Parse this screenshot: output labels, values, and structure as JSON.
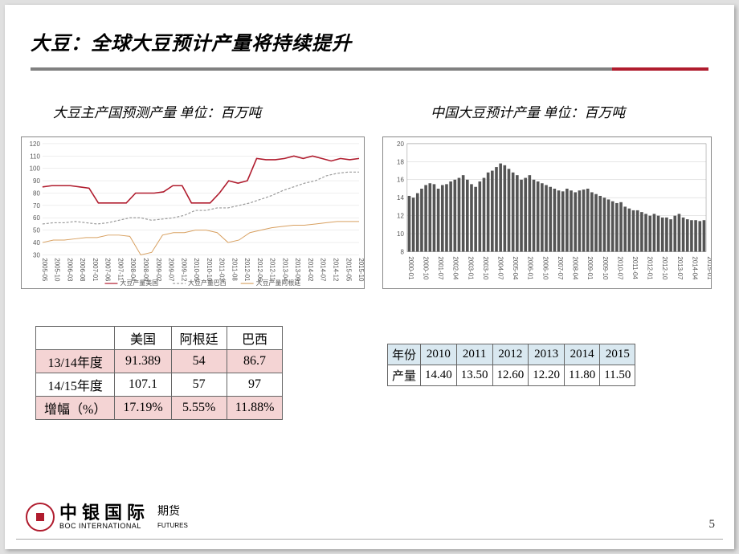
{
  "title": "大豆：全球大豆预计产量将持续提升",
  "subtitle_left": "大豆主产国预测产量 单位：百万吨",
  "subtitle_right": "中国大豆预计产量  单位：百万吨",
  "left_chart": {
    "type": "line",
    "ylim": [
      30,
      120
    ],
    "ytick_step": 10,
    "yticks": [
      30,
      40,
      50,
      60,
      70,
      80,
      90,
      100,
      110,
      120
    ],
    "x_labels": [
      "2005-05",
      "2005-10",
      "2006-03",
      "2006-08",
      "2007-01",
      "2007-06",
      "2007-11",
      "2008-04",
      "2008-09",
      "2009-02",
      "2009-07",
      "2009-12",
      "2010-05",
      "2010-10",
      "2011-03",
      "2011-08",
      "2012-01",
      "2012-06",
      "2012-11",
      "2013-04",
      "2013-09",
      "2014-02",
      "2014-07",
      "2014-12",
      "2015-05",
      "2015-10"
    ],
    "grid_color": "#dddddd",
    "background_color": "#ffffff",
    "series": [
      {
        "name": "大豆产量美国",
        "color": "#b01c2e",
        "width": 1.6,
        "values": [
          85,
          86,
          86,
          86,
          85,
          84,
          72,
          72,
          72,
          72,
          80,
          80,
          80,
          81,
          86,
          86,
          72,
          72,
          72,
          80,
          90,
          88,
          90,
          108,
          107,
          107,
          108,
          110,
          108,
          110,
          108,
          106,
          108,
          107,
          108
        ]
      },
      {
        "name": "大豆产量巴西",
        "color": "#999999",
        "width": 1.2,
        "dash": "3,2",
        "values": [
          55,
          56,
          56,
          57,
          56,
          55,
          56,
          58,
          60,
          60,
          58,
          59,
          60,
          62,
          66,
          66,
          68,
          68,
          70,
          72,
          75,
          78,
          82,
          85,
          88,
          90,
          94,
          96,
          97,
          97
        ]
      },
      {
        "name": "大豆产量阿根廷",
        "color": "#d8a060",
        "width": 1.0,
        "values": [
          40,
          42,
          42,
          43,
          44,
          44,
          46,
          46,
          45,
          30,
          32,
          46,
          48,
          48,
          50,
          50,
          48,
          40,
          42,
          48,
          50,
          52,
          53,
          54,
          54,
          55,
          56,
          57,
          57,
          57
        ]
      }
    ],
    "legend_items": [
      "大豆产量美国",
      "大豆产量巴西",
      "大豆产量阿根廷"
    ]
  },
  "right_chart": {
    "type": "bar",
    "ylim": [
      8,
      20
    ],
    "ytick_step": 2,
    "yticks": [
      8,
      10,
      12,
      14,
      16,
      18,
      20
    ],
    "x_labels": [
      "2000-01",
      "2000-10",
      "2001-07",
      "2002-04",
      "2003-01",
      "2003-10",
      "2004-07",
      "2005-04",
      "2006-01",
      "2006-10",
      "2007-07",
      "2008-04",
      "2009-01",
      "2009-10",
      "2010-07",
      "2011-04",
      "2012-01",
      "2012-10",
      "2013-07",
      "2014-04",
      "2015-01"
    ],
    "bar_color": "#555555",
    "grid_color": "#cccccc",
    "background_color": "#ffffff",
    "values": [
      14.2,
      14.0,
      14.5,
      15.0,
      15.4,
      15.6,
      15.5,
      15.0,
      15.4,
      15.5,
      15.8,
      16.0,
      16.2,
      16.5,
      16.0,
      15.5,
      15.2,
      15.8,
      16.2,
      16.8,
      17.0,
      17.4,
      17.8,
      17.6,
      17.2,
      16.8,
      16.5,
      16.0,
      16.2,
      16.5,
      16.0,
      15.8,
      15.6,
      15.4,
      15.2,
      15.0,
      14.8,
      14.7,
      15.0,
      14.8,
      14.6,
      14.8,
      14.9,
      15.0,
      14.6,
      14.4,
      14.2,
      14.0,
      13.8,
      13.6,
      13.4,
      13.5,
      13.0,
      12.8,
      12.6,
      12.6,
      12.4,
      12.2,
      12.0,
      12.2,
      12.0,
      11.8,
      11.8,
      11.6,
      12.0,
      12.2,
      11.8,
      11.6,
      11.5,
      11.5,
      11.4,
      11.5
    ]
  },
  "table_left": {
    "columns": [
      "",
      "美国",
      "阿根廷",
      "巴西"
    ],
    "rows": [
      {
        "label": "13/14年度",
        "cells": [
          "91.389",
          "54",
          "86.7"
        ],
        "bg": "#f4d4d4"
      },
      {
        "label": "14/15年度",
        "cells": [
          "107.1",
          "57",
          "97"
        ],
        "bg": "#ffffff"
      },
      {
        "label": "增幅（%）",
        "cells": [
          "17.19%",
          "5.55%",
          "11.88%"
        ],
        "bg": "#f4d4d4"
      }
    ]
  },
  "table_right": {
    "header_bg": "#d9e8f0",
    "row1": [
      "年份",
      "2010",
      "2011",
      "2012",
      "2013",
      "2014",
      "2015"
    ],
    "row2": [
      "产量",
      "14.40",
      "13.50",
      "12.60",
      "12.20",
      "11.80",
      "11.50"
    ]
  },
  "footer": {
    "brand_cn": "中银国际",
    "brand_en": "BOC INTERNATIONAL",
    "brand_suffix": "期货",
    "brand_en_suffix": "FUTURES",
    "page": "5"
  }
}
